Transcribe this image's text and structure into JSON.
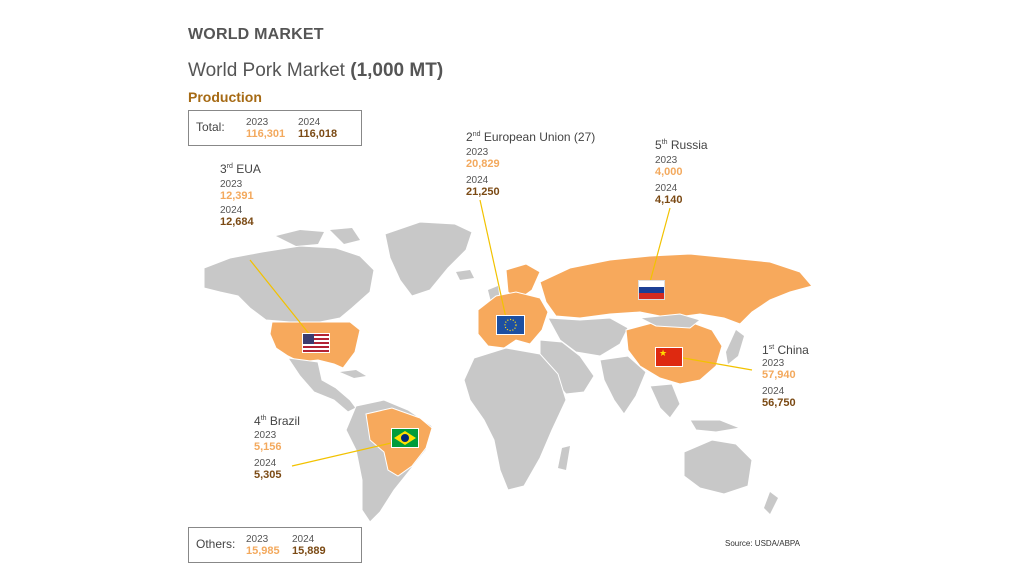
{
  "header": {
    "section": "WORLD MARKET",
    "title": "World Pork Market",
    "unit": "(1,000 MT)",
    "subtitle": "Production"
  },
  "total": {
    "label": "Total:",
    "y1": "2023",
    "v1": "116,301",
    "y2": "2024",
    "v2": "116,018"
  },
  "others": {
    "label": "Others:",
    "y1": "2023",
    "v1": "15,985",
    "y2": "2024",
    "v2": "15,889"
  },
  "countries": [
    {
      "rank": "3",
      "suffix": "rd",
      "name": "EUA",
      "y1": "2023",
      "v1": "12,391",
      "y2": "2024",
      "v2": "12,684",
      "flag": "usa-flag"
    },
    {
      "rank": "2",
      "suffix": "nd",
      "name": "European Union (27)",
      "y1": "2023",
      "v1": "20,829",
      "y2": "2024",
      "v2": "21,250",
      "flag": "eu-flag"
    },
    {
      "rank": "5",
      "suffix": "th",
      "name": "Russia",
      "y1": "2023",
      "v1": "4,000",
      "y2": "2024",
      "v2": "4,140",
      "flag": "russia-flag"
    },
    {
      "rank": "1",
      "suffix": "st",
      "name": "China",
      "y1": "2023",
      "v1": "57,940",
      "y2": "2024",
      "v2": "56,750",
      "flag": "china-flag"
    },
    {
      "rank": "4",
      "suffix": "th",
      "name": "Brazil",
      "y1": "2023",
      "v1": "5,156",
      "y2": "2024",
      "v2": "5,305",
      "flag": "brazil-flag"
    }
  ],
  "source": "Source: USDA/ABPA",
  "colors": {
    "land": "#c8c8c8",
    "highlight": "#f7a95c",
    "leader": "#f2c200",
    "v2023": "#f3a95d",
    "v2024": "#7b4a14",
    "subtitle": "#a66a14"
  }
}
